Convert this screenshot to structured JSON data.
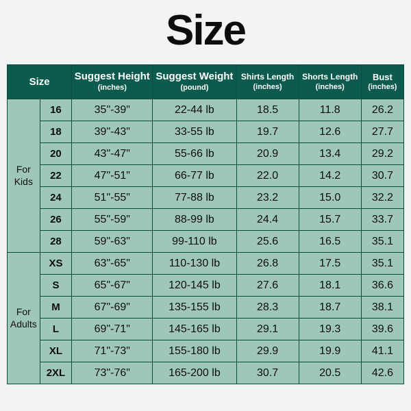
{
  "title": "Size",
  "columns": [
    {
      "line1": "Size",
      "line2": ""
    },
    {
      "line1": "Suggest Height",
      "line2": "(inches)"
    },
    {
      "line1": "Suggest Weight",
      "line2": "(pound)"
    },
    {
      "line1": "Shirts Length",
      "line2": "(inches)"
    },
    {
      "line1": "Shorts Length",
      "line2": "(inches)"
    },
    {
      "line1": "Bust",
      "line2": "(inches)"
    }
  ],
  "groups": [
    {
      "label": "For\nKids",
      "rows": [
        {
          "size": "16",
          "height": "35\"-39\"",
          "weight": "22-44 lb",
          "shirts": "18.5",
          "shorts": "11.8",
          "bust": "26.2"
        },
        {
          "size": "18",
          "height": "39\"-43\"",
          "weight": "33-55 lb",
          "shirts": "19.7",
          "shorts": "12.6",
          "bust": "27.7"
        },
        {
          "size": "20",
          "height": "43\"-47\"",
          "weight": "55-66 lb",
          "shirts": "20.9",
          "shorts": "13.4",
          "bust": "29.2"
        },
        {
          "size": "22",
          "height": "47\"-51\"",
          "weight": "66-77 lb",
          "shirts": "22.0",
          "shorts": "14.2",
          "bust": "30.7"
        },
        {
          "size": "24",
          "height": "51\"-55\"",
          "weight": "77-88 lb",
          "shirts": "23.2",
          "shorts": "15.0",
          "bust": "32.2"
        },
        {
          "size": "26",
          "height": "55\"-59\"",
          "weight": "88-99 lb",
          "shirts": "24.4",
          "shorts": "15.7",
          "bust": "33.7"
        },
        {
          "size": "28",
          "height": "59\"-63\"",
          "weight": "99-110 lb",
          "shirts": "25.6",
          "shorts": "16.5",
          "bust": "35.1"
        }
      ]
    },
    {
      "label": "For\nAdults",
      "rows": [
        {
          "size": "XS",
          "height": "63\"-65\"",
          "weight": "110-130 lb",
          "shirts": "26.8",
          "shorts": "17.5",
          "bust": "35.1"
        },
        {
          "size": "S",
          "height": "65\"-67\"",
          "weight": "120-145 lb",
          "shirts": "27.6",
          "shorts": "18.1",
          "bust": "36.6"
        },
        {
          "size": "M",
          "height": "67\"-69\"",
          "weight": "135-155 lb",
          "shirts": "28.3",
          "shorts": "18.7",
          "bust": "38.1"
        },
        {
          "size": "L",
          "height": "69\"-71\"",
          "weight": "145-165 lb",
          "shirts": "29.1",
          "shorts": "19.3",
          "bust": "39.6"
        },
        {
          "size": "XL",
          "height": "71\"-73\"",
          "weight": "155-180 lb",
          "shirts": "29.9",
          "shorts": "19.9",
          "bust": "41.1"
        },
        {
          "size": "2XL",
          "height": "73\"-76\"",
          "weight": "165-200 lb",
          "shirts": "30.7",
          "shorts": "20.5",
          "bust": "42.6"
        }
      ]
    }
  ]
}
